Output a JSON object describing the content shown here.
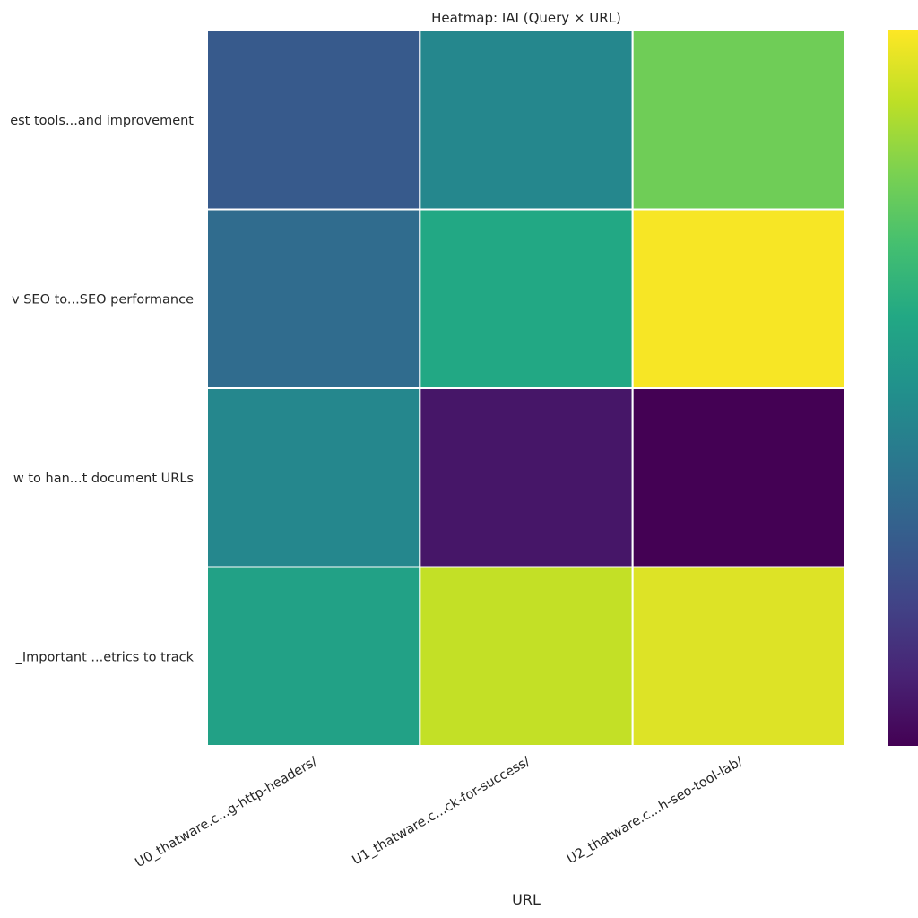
{
  "chart_data": {
    "type": "heatmap",
    "title": "Heatmap: IAI (Query × URL)",
    "xlabel": "URL",
    "ylabel": "",
    "x_categories": [
      "U0_thatware.c...g-http-headers/",
      "U1_thatware.c...ck-for-success/",
      "U2_thatware.c...h-seo-tool-lab/"
    ],
    "y_categories": [
      "est tools...and improvement",
      "v SEO to...SEO performance",
      "w to han...t document URLs",
      "_Important ...etrics to track"
    ],
    "values": [
      [
        0.28,
        0.46,
        0.78
      ],
      [
        0.35,
        0.6,
        0.99
      ],
      [
        0.46,
        0.06,
        0.0
      ],
      [
        0.57,
        0.91,
        0.95
      ]
    ],
    "colormap": "viridis",
    "value_range": [
      0,
      1
    ],
    "colorbar": true,
    "grid": false
  }
}
